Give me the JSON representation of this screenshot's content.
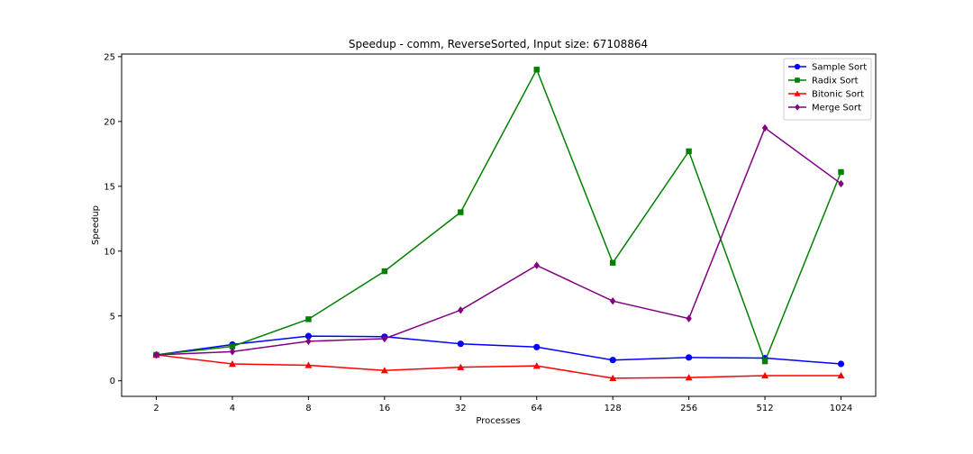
{
  "chart_data": {
    "type": "line",
    "title": "Speedup - comm, ReverseSorted, Input size: 67108864",
    "xlabel": "Processes",
    "ylabel": "Speedup",
    "categories": [
      "2",
      "4",
      "8",
      "16",
      "32",
      "64",
      "128",
      "256",
      "512",
      "1024"
    ],
    "ylim": [
      -1.2,
      25.2
    ],
    "yticks": [
      0,
      5,
      10,
      15,
      20,
      25
    ],
    "grid": false,
    "legend_position": "top-right",
    "series": [
      {
        "name": "Sample Sort",
        "color": "#0000ff",
        "marker": "circle",
        "values": [
          2.0,
          2.8,
          3.45,
          3.4,
          2.85,
          2.6,
          1.6,
          1.8,
          1.75,
          1.3
        ]
      },
      {
        "name": "Radix Sort",
        "color": "#008000",
        "marker": "square",
        "values": [
          2.0,
          2.65,
          4.75,
          8.45,
          13.0,
          24.0,
          9.1,
          17.7,
          1.5,
          16.1
        ]
      },
      {
        "name": "Bitonic Sort",
        "color": "#ff0000",
        "marker": "triangle",
        "values": [
          2.0,
          1.3,
          1.2,
          0.8,
          1.05,
          1.15,
          0.2,
          0.25,
          0.4,
          0.4
        ]
      },
      {
        "name": "Merge Sort",
        "color": "#800080",
        "marker": "diamond",
        "values": [
          2.0,
          2.25,
          3.05,
          3.25,
          5.45,
          8.9,
          6.15,
          4.8,
          19.5,
          15.2
        ]
      }
    ]
  }
}
